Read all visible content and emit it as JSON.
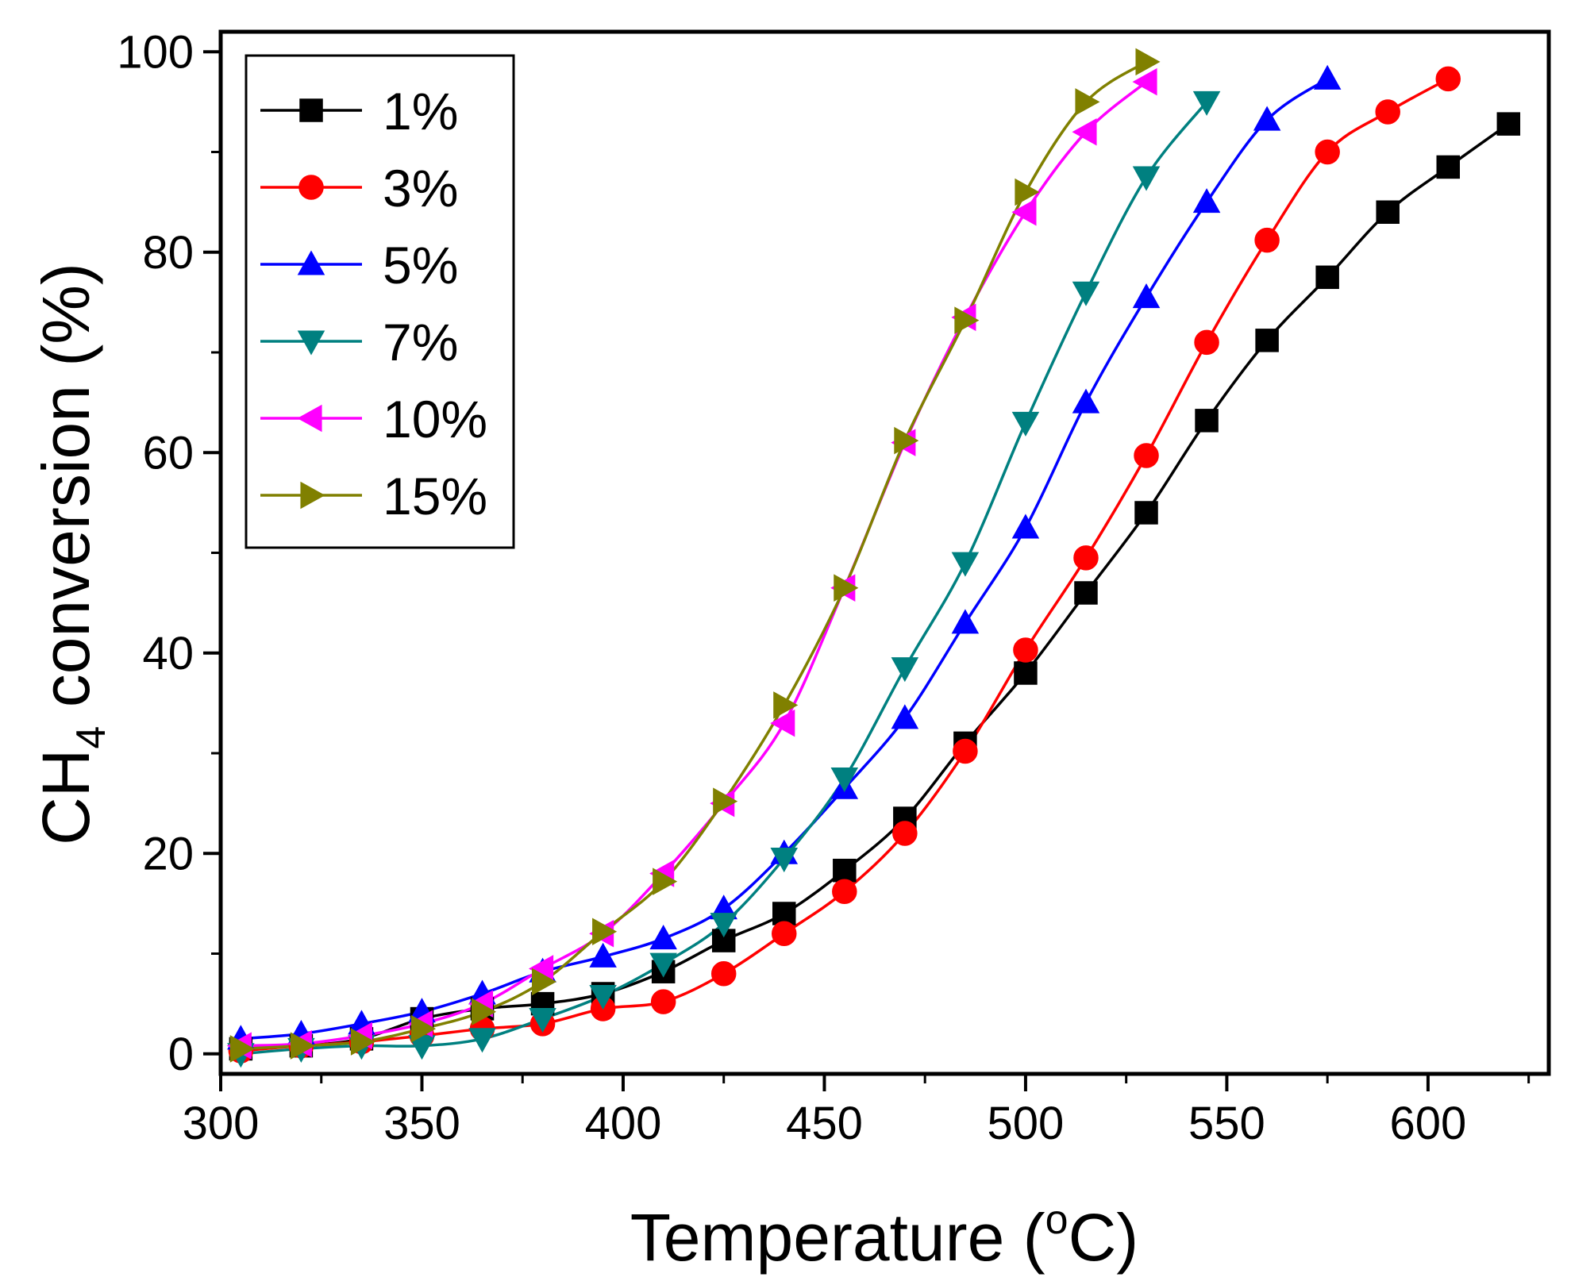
{
  "chart_data": {
    "type": "line",
    "xlabel": "Temperature (",
    "xlabel_sup": "o",
    "xlabel_end": "C)",
    "ylabel": "CH",
    "ylabel_sub": "4",
    "ylabel_end": " conversion (%)",
    "xlim": [
      300,
      630
    ],
    "ylim": [
      -2,
      102
    ],
    "xticks": [
      300,
      350,
      400,
      450,
      500,
      550,
      600
    ],
    "xtick_labels": [
      "300",
      "350",
      "400",
      "450",
      "500",
      "550",
      "600"
    ],
    "yticks": [
      0,
      20,
      40,
      60,
      80,
      100
    ],
    "ytick_labels": [
      "0",
      "20",
      "40",
      "60",
      "80",
      "100"
    ],
    "legend_position": "top-left",
    "grid": false,
    "series": [
      {
        "name": "1%",
        "color": "#000000",
        "marker": "square",
        "x": [
          305,
          320,
          335,
          350,
          365,
          380,
          395,
          410,
          425,
          440,
          455,
          470,
          485,
          500,
          515,
          530,
          545,
          560,
          575,
          590,
          605,
          620
        ],
        "y": [
          0.5,
          0.8,
          1.5,
          3.5,
          4.5,
          5,
          6,
          8.2,
          11.3,
          14,
          18.3,
          23.5,
          31,
          38,
          46,
          54,
          63.2,
          71.2,
          77.5,
          84,
          88.5,
          92.8
        ]
      },
      {
        "name": "3%",
        "color": "#ff0000",
        "marker": "circle",
        "x": [
          305,
          320,
          335,
          350,
          365,
          380,
          395,
          410,
          425,
          440,
          455,
          470,
          485,
          500,
          515,
          530,
          545,
          560,
          575,
          590,
          605
        ],
        "y": [
          0.3,
          0.8,
          1.2,
          1.8,
          2.5,
          3,
          4.5,
          5.2,
          8,
          12,
          16.2,
          22,
          30.2,
          40.3,
          49.5,
          59.7,
          71,
          81.2,
          90,
          94,
          97.3
        ]
      },
      {
        "name": "5%",
        "color": "#0000ff",
        "marker": "triangle-up",
        "x": [
          305,
          320,
          335,
          350,
          365,
          380,
          395,
          410,
          425,
          440,
          455,
          470,
          485,
          500,
          515,
          530,
          545,
          560,
          575
        ],
        "y": [
          1.5,
          2,
          3,
          4.2,
          6,
          8.2,
          9.7,
          11.5,
          14.5,
          20,
          26.5,
          33.5,
          43,
          52.5,
          65,
          75.5,
          85,
          93.2,
          97.3
        ]
      },
      {
        "name": "7%",
        "color": "#008080",
        "marker": "triangle-down",
        "x": [
          305,
          320,
          335,
          350,
          365,
          380,
          395,
          410,
          425,
          440,
          455,
          470,
          485,
          500,
          515,
          530,
          545
        ],
        "y": [
          0,
          0.5,
          0.8,
          0.8,
          1.5,
          3.5,
          5.8,
          9,
          13,
          19.5,
          27.5,
          38.5,
          49,
          63,
          76,
          87.5,
          95
        ]
      },
      {
        "name": "10%",
        "color": "#ff00ff",
        "marker": "triangle-left",
        "x": [
          305,
          320,
          335,
          350,
          365,
          380,
          395,
          410,
          425,
          440,
          455,
          470,
          485,
          500,
          515,
          530
        ],
        "y": [
          0.8,
          1,
          1.8,
          3,
          5,
          8.5,
          12,
          18,
          25,
          33,
          46.5,
          61,
          73.5,
          84,
          92,
          97
        ]
      },
      {
        "name": "15%",
        "color": "#808000",
        "marker": "triangle-right",
        "x": [
          305,
          320,
          335,
          350,
          365,
          380,
          395,
          410,
          425,
          440,
          455,
          470,
          485,
          500,
          515,
          530
        ],
        "y": [
          0.5,
          0.8,
          1.2,
          2.5,
          4.2,
          7.2,
          12.2,
          17.2,
          25.2,
          34.8,
          46.5,
          61.2,
          73.2,
          86,
          95,
          99
        ]
      }
    ]
  }
}
